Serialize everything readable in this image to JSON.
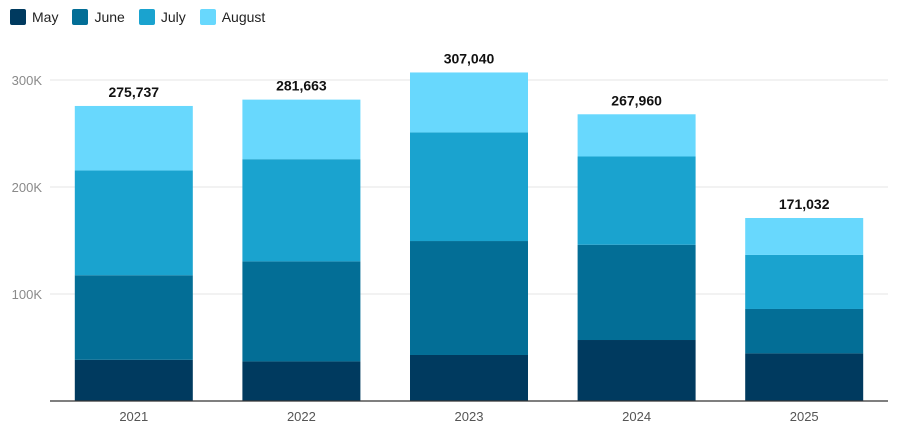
{
  "chart_data": {
    "type": "bar",
    "stacked": true,
    "categories": [
      "2021",
      "2022",
      "2023",
      "2024",
      "2025"
    ],
    "series": [
      {
        "name": "May",
        "color": "#003a5f",
        "values": [
          38500,
          37000,
          43000,
          57000,
          44500
        ]
      },
      {
        "name": "June",
        "color": "#036e96",
        "values": [
          79000,
          93500,
          106500,
          89000,
          41500
        ]
      },
      {
        "name": "July",
        "color": "#1aa3cf",
        "values": [
          98000,
          95500,
          101500,
          82500,
          50500
        ]
      },
      {
        "name": "August",
        "color": "#68d8fd",
        "values": [
          60237,
          55663,
          56040,
          39460,
          34532
        ]
      }
    ],
    "totals": [
      "275,737",
      "281,663",
      "307,040",
      "267,960",
      "171,032"
    ],
    "ylim": [
      0,
      300000
    ],
    "yticks": [
      {
        "value": 100000,
        "label": "100K"
      },
      {
        "value": 200000,
        "label": "200K"
      },
      {
        "value": 300000,
        "label": "300K"
      }
    ],
    "grid": true,
    "legend": "top-left",
    "title": "",
    "xlabel": "",
    "ylabel": ""
  }
}
